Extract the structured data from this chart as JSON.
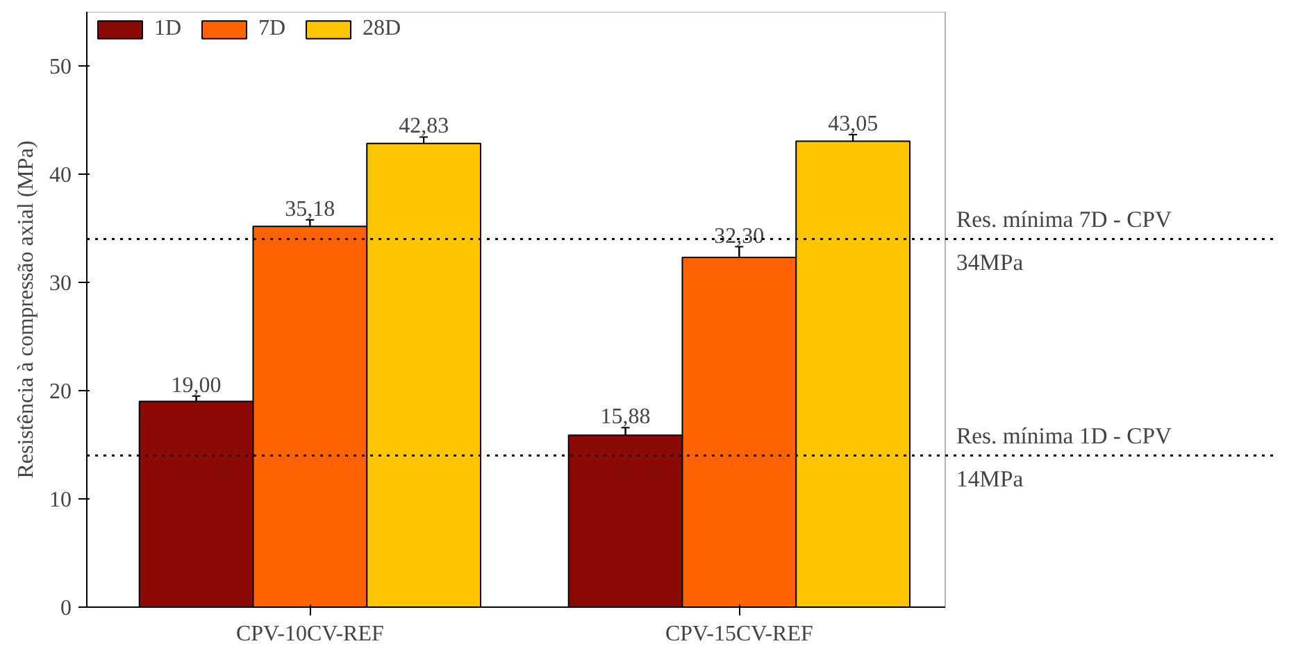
{
  "chart_data": {
    "type": "bar",
    "ylabel": "Resistência à compressão axial (MPa)",
    "categories": [
      "CPV-10CV-REF",
      "CPV-15CV-REF"
    ],
    "series": [
      {
        "name": "1D",
        "color": "#8b0a05",
        "values": [
          19.0,
          15.88
        ],
        "errors": [
          0.5,
          0.7
        ],
        "value_labels": [
          "19,00",
          "15,88"
        ]
      },
      {
        "name": "7D",
        "color": "#ff6200",
        "values": [
          35.18,
          32.3
        ],
        "errors": [
          0.6,
          1.0
        ],
        "value_labels": [
          "35,18",
          "32,30"
        ]
      },
      {
        "name": "28D",
        "color": "#ffc500",
        "values": [
          42.83,
          43.05
        ],
        "errors": [
          0.6,
          0.6
        ],
        "value_labels": [
          "42,83",
          "43,05"
        ]
      }
    ],
    "ylim": [
      0,
      55
    ],
    "yticks": [
      0,
      10,
      20,
      30,
      40,
      50
    ],
    "ref_lines": [
      {
        "axis": "y",
        "value": 34,
        "label": "Res. mínima 7D - CPV\n34MPa",
        "line_style": "dotted",
        "color": "#000000"
      },
      {
        "axis": "y",
        "value": 14,
        "label": "Res. mínima 1D - CPV\n14MPa",
        "line_style": "dotted",
        "color": "#000000"
      }
    ],
    "legend": "top left",
    "grid": false
  }
}
